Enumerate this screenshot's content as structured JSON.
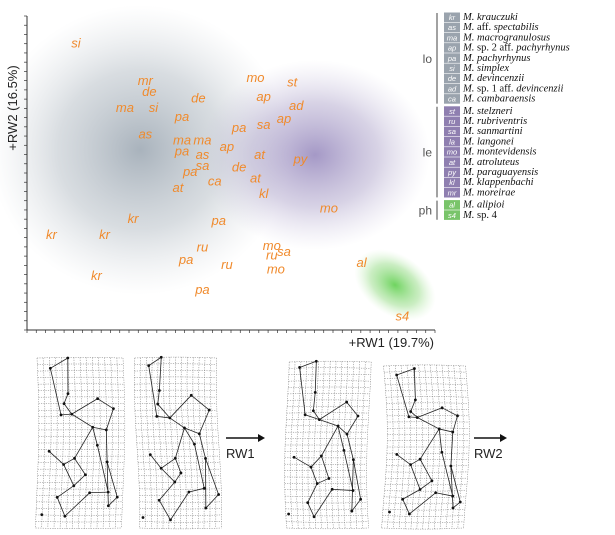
{
  "chart_data": {
    "type": "scatter",
    "xlabel": "+RW1 (19.7%)",
    "ylabel": "+RW2 (16.5%)",
    "points": [
      {
        "label": "si",
        "x": 0.12,
        "y": 0.9
      },
      {
        "label": "mr",
        "x": 0.29,
        "y": 0.78
      },
      {
        "label": "de",
        "x": 0.3,
        "y": 0.745
      },
      {
        "label": "ma",
        "x": 0.24,
        "y": 0.695
      },
      {
        "label": "si",
        "x": 0.31,
        "y": 0.695
      },
      {
        "label": "de",
        "x": 0.42,
        "y": 0.725
      },
      {
        "label": "mo",
        "x": 0.56,
        "y": 0.79
      },
      {
        "label": "st",
        "x": 0.65,
        "y": 0.775
      },
      {
        "label": "ap",
        "x": 0.58,
        "y": 0.73
      },
      {
        "label": "ad",
        "x": 0.66,
        "y": 0.7
      },
      {
        "label": "ap",
        "x": 0.63,
        "y": 0.66
      },
      {
        "label": "pa",
        "x": 0.38,
        "y": 0.665
      },
      {
        "label": "pa",
        "x": 0.52,
        "y": 0.63
      },
      {
        "label": "sa",
        "x": 0.58,
        "y": 0.64
      },
      {
        "label": "as",
        "x": 0.29,
        "y": 0.61
      },
      {
        "label": "ma",
        "x": 0.38,
        "y": 0.59
      },
      {
        "label": "ma",
        "x": 0.43,
        "y": 0.59
      },
      {
        "label": "ap",
        "x": 0.49,
        "y": 0.57
      },
      {
        "label": "pa",
        "x": 0.38,
        "y": 0.555
      },
      {
        "label": "as",
        "x": 0.43,
        "y": 0.545
      },
      {
        "label": "at",
        "x": 0.57,
        "y": 0.545
      },
      {
        "label": "py",
        "x": 0.67,
        "y": 0.53
      },
      {
        "label": "sa",
        "x": 0.43,
        "y": 0.51
      },
      {
        "label": "de",
        "x": 0.52,
        "y": 0.505
      },
      {
        "label": "pa",
        "x": 0.4,
        "y": 0.49
      },
      {
        "label": "ca",
        "x": 0.46,
        "y": 0.46
      },
      {
        "label": "at",
        "x": 0.56,
        "y": 0.47
      },
      {
        "label": "at",
        "x": 0.37,
        "y": 0.44
      },
      {
        "label": "kl",
        "x": 0.58,
        "y": 0.42
      },
      {
        "label": "mo",
        "x": 0.74,
        "y": 0.375
      },
      {
        "label": "kr",
        "x": 0.26,
        "y": 0.34
      },
      {
        "label": "kr",
        "x": 0.06,
        "y": 0.29
      },
      {
        "label": "kr",
        "x": 0.19,
        "y": 0.29
      },
      {
        "label": "pa",
        "x": 0.47,
        "y": 0.335
      },
      {
        "label": "ru",
        "x": 0.43,
        "y": 0.25
      },
      {
        "label": "mo",
        "x": 0.6,
        "y": 0.255
      },
      {
        "label": "ru",
        "x": 0.6,
        "y": 0.225
      },
      {
        "label": "sa",
        "x": 0.63,
        "y": 0.235
      },
      {
        "label": "pa",
        "x": 0.39,
        "y": 0.21
      },
      {
        "label": "ru",
        "x": 0.49,
        "y": 0.195
      },
      {
        "label": "mo",
        "x": 0.61,
        "y": 0.18
      },
      {
        "label": "al",
        "x": 0.82,
        "y": 0.2
      },
      {
        "label": "kr",
        "x": 0.17,
        "y": 0.16
      },
      {
        "label": "pa",
        "x": 0.43,
        "y": 0.115
      },
      {
        "label": "s4",
        "x": 0.92,
        "y": 0.03
      }
    ]
  },
  "legend": {
    "groups": [
      {
        "label": "lo",
        "color": "#9aa3ad",
        "items": [
          {
            "code": "kr",
            "genus": "M.",
            "epithet": "krauczuki"
          },
          {
            "code": "as",
            "genus": "M.",
            "epithet": "aff. spectabilis",
            "aff": true
          },
          {
            "code": "ma",
            "genus": "M.",
            "epithet": "macrogranulosus"
          },
          {
            "code": "ap",
            "genus": "M.",
            "epithet": "sp. 2 aff. pachyrhynus",
            "mixed": true
          },
          {
            "code": "pa",
            "genus": "M.",
            "epithet": "pachyrhynus"
          },
          {
            "code": "si",
            "genus": "M.",
            "epithet": "simplex"
          },
          {
            "code": "de",
            "genus": "M.",
            "epithet": "devincenzii"
          },
          {
            "code": "ad",
            "genus": "M.",
            "epithet": "sp. 1 aff. devincenzii",
            "mixed": true
          },
          {
            "code": "ca",
            "genus": "M.",
            "epithet": "cambaraensis"
          }
        ]
      },
      {
        "label": "le",
        "color": "#8f7fb0",
        "items": [
          {
            "code": "st",
            "genus": "M.",
            "epithet": "stelzneri"
          },
          {
            "code": "ru",
            "genus": "M.",
            "epithet": "rubriventris"
          },
          {
            "code": "sa",
            "genus": "M.",
            "epithet": "sanmartini"
          },
          {
            "code": "la",
            "genus": "M.",
            "epithet": "langonei"
          },
          {
            "code": "mo",
            "genus": "M.",
            "epithet": "montevidensis"
          },
          {
            "code": "at",
            "genus": "M.",
            "epithet": "atroluteus"
          },
          {
            "code": "py",
            "genus": "M.",
            "epithet": "paraguayensis"
          },
          {
            "code": "kl",
            "genus": "M.",
            "epithet": "klappenbachi"
          },
          {
            "code": "mr",
            "genus": "M.",
            "epithet": "moreirae"
          }
        ]
      },
      {
        "label": "ph",
        "color": "#79c46a",
        "items": [
          {
            "code": "al",
            "genus": "M.",
            "epithet": "alipioi"
          },
          {
            "code": "s4",
            "genus": "M.",
            "epithet": "sp. 4",
            "plain": true
          }
        ]
      }
    ]
  },
  "deformation": {
    "rw1_label": "RW1",
    "rw2_label": "RW2"
  }
}
